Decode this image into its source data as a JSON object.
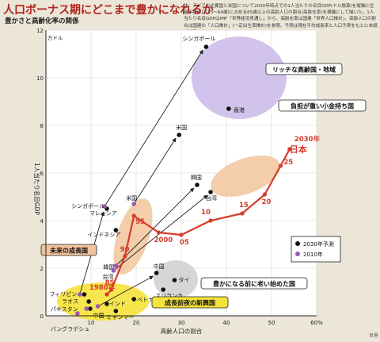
{
  "header": {
    "title": "人口ボーナス期にどこまで豊かになれるか",
    "subtitle": "豊かさと高齢化率の関係",
    "note": "注：アジアの主要国と米国について2030年時点での1人当たりの名目GDP(ドル換算)を縦軸に生産年齢人口(15～64歳)に占める65歳以上の高齢人口の割合(高齢化率)を横軸にして描いた。1人当たり名目GDPはIMF「世界経済見通し」から、高齢化率は国連「世界人口推計」。高齢人口の割合は国連の「人口推計」(一定出生率推計)を参照。予測は現在平均成長率と人口予測をもとに本紙が試算した"
  },
  "tail_text": "世界",
  "chart_data": {
    "type": "scatter",
    "xlabel": "高齢人口の割合",
    "ylabel": "1人当たり名目GDP",
    "y_unit": "万ドル",
    "x_unit": "%",
    "xlim": [
      0,
      60
    ],
    "ylim": [
      0,
      12
    ],
    "x_ticks": [
      {
        "value": 10,
        "label": "10"
      },
      {
        "value": 20,
        "label": "20"
      },
      {
        "value": 30,
        "label": "30"
      },
      {
        "value": 40,
        "label": "40"
      },
      {
        "value": 50,
        "label": "50"
      },
      {
        "value": 60,
        "label": "60%"
      }
    ],
    "y_ticks": [
      {
        "value": 0,
        "label": "0"
      },
      {
        "value": 2,
        "label": "2"
      },
      {
        "value": 4,
        "label": "4"
      },
      {
        "value": 6,
        "label": "6"
      },
      {
        "value": 8,
        "label": "8"
      },
      {
        "value": 10,
        "label": "10"
      },
      {
        "value": 12,
        "label": "12"
      }
    ],
    "legend": {
      "position": "bottom-right",
      "entries": [
        {
          "label": "2030年予測",
          "color": "#111111"
        },
        {
          "label": "2010年",
          "color": "#9b59b6"
        }
      ]
    },
    "points_2030": [
      {
        "label": "シンガポール",
        "x": 35.5,
        "y": 11.3
      },
      {
        "label": "香港",
        "x": 40.5,
        "y": 8.7
      },
      {
        "label": "米国",
        "x": 29.5,
        "y": 7.6
      },
      {
        "label": "韓国",
        "x": 33.5,
        "y": 5.5
      },
      {
        "label": "台湾",
        "x": 36.5,
        "y": 5.2
      },
      {
        "label": "マレーシア",
        "x": 13.5,
        "y": 4.5
      },
      {
        "label": "インドネシア",
        "x": 15.5,
        "y": 3.6
      },
      {
        "label": "中国",
        "x": 24.5,
        "y": 1.8
      },
      {
        "label": "タイ",
        "x": 28.5,
        "y": 1.5
      },
      {
        "label": "スリランカ",
        "x": 26,
        "y": 1.1
      },
      {
        "label": "フィリピン",
        "x": 8.5,
        "y": 0.9
      },
      {
        "label": "ラオス",
        "x": 9.5,
        "y": 0.6
      },
      {
        "label": "パキスタン",
        "x": 9.8,
        "y": 0.3
      },
      {
        "label": "インド",
        "x": 13.5,
        "y": 0.5
      },
      {
        "label": "ベトナム",
        "x": 19.5,
        "y": 0.7
      },
      {
        "label": "ミャンマー",
        "x": 15.5,
        "y": 0.2
      }
    ],
    "points_2010": [
      {
        "label": "シンガポール",
        "x": 13,
        "y": 4.6
      },
      {
        "label": "米国",
        "x": 19.5,
        "y": 4.7
      },
      {
        "label": "韓国",
        "x": 15.5,
        "y": 2.1
      },
      {
        "label": "台湾",
        "x": 15,
        "y": 1.9
      },
      {
        "label": "マレーシア",
        "x": 7.5,
        "y": 0.9
      },
      {
        "label": "インドネシア",
        "x": 9,
        "y": 0.3
      },
      {
        "label": "中国",
        "x": 11.5,
        "y": 0.4
      },
      {
        "label": "バングラデシュ",
        "x": 7,
        "y": 0.1
      }
    ],
    "japan_path": {
      "label": "日本",
      "label_year": "2030年",
      "color": "#d63b2a",
      "points": [
        {
          "year": "1980年",
          "x": 13.5,
          "y": 0.9
        },
        {
          "year": "85",
          "x": 14.5,
          "y": 1.1
        },
        {
          "year": "90",
          "x": 17.5,
          "y": 2.5
        },
        {
          "year": "95",
          "x": 19.5,
          "y": 4.2
        },
        {
          "year": "2000",
          "x": 25,
          "y": 3.5
        },
        {
          "year": "05",
          "x": 30,
          "y": 3.4
        },
        {
          "year": "10",
          "x": 36.5,
          "y": 4.0
        },
        {
          "year": "15",
          "x": 43.5,
          "y": 4.3
        },
        {
          "year": "20",
          "x": 48.5,
          "y": 5.1
        },
        {
          "year": "25",
          "x": 52,
          "y": 6.3
        },
        {
          "year": "2030年",
          "x": 54,
          "y": 7.0
        }
      ]
    },
    "groups": [
      {
        "name": "リッチな高齢国・地域",
        "color": "#c9b8e8"
      },
      {
        "name": "負担が重い小金持ち国",
        "color": "#f2c49b"
      },
      {
        "name": "未来の成長国",
        "color": "#f2c49b"
      },
      {
        "name": "豊かになる前に老い始めた国",
        "color": "#cfcfcf"
      },
      {
        "name": "成長前夜の新興国",
        "color": "#f5e23a"
      }
    ]
  }
}
